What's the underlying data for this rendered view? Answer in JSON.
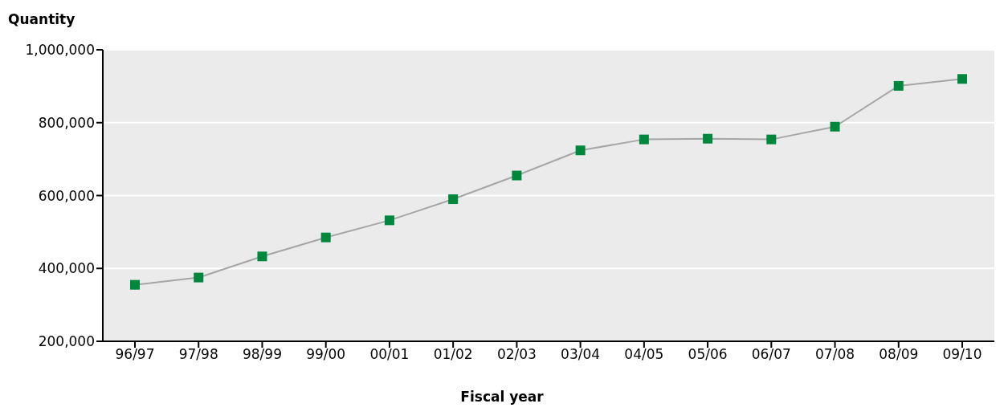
{
  "chart_data": {
    "type": "line",
    "xlabel": "Fiscal year",
    "ylabel": "Quantity",
    "categories": [
      "96/97",
      "97/98",
      "98/99",
      "99/00",
      "00/01",
      "01/02",
      "02/03",
      "03/04",
      "04/05",
      "05/06",
      "06/07",
      "07/08",
      "08/09",
      "09/10"
    ],
    "series": [
      {
        "color": "#a6a6a6",
        "colors": [
          "#00873e",
          "#00873e",
          "#00873e",
          "#00873e",
          "#00873e",
          "#00873e",
          "#00873e",
          "#00873e",
          "#00873e",
          "#00873e",
          "#00873e",
          "#00873e",
          "#00873e",
          "#00873e"
        ],
        "values": [
          355000,
          375000,
          433000,
          485000,
          532000,
          590000,
          655000,
          724000,
          754000,
          756000,
          754000,
          789000,
          901000,
          920000
        ]
      }
    ],
    "ylim": [
      200000,
      1000000
    ],
    "yticks": [
      {
        "value": 200000,
        "label": "200,000"
      },
      {
        "value": 400000,
        "label": "400,000"
      },
      {
        "value": 600000,
        "label": "600,000"
      },
      {
        "value": 800000,
        "label": "800,000"
      },
      {
        "value": 1000000,
        "label": "1,000,000"
      }
    ],
    "grid": "y",
    "marker": "square",
    "line_style": "solid",
    "legend": false
  }
}
